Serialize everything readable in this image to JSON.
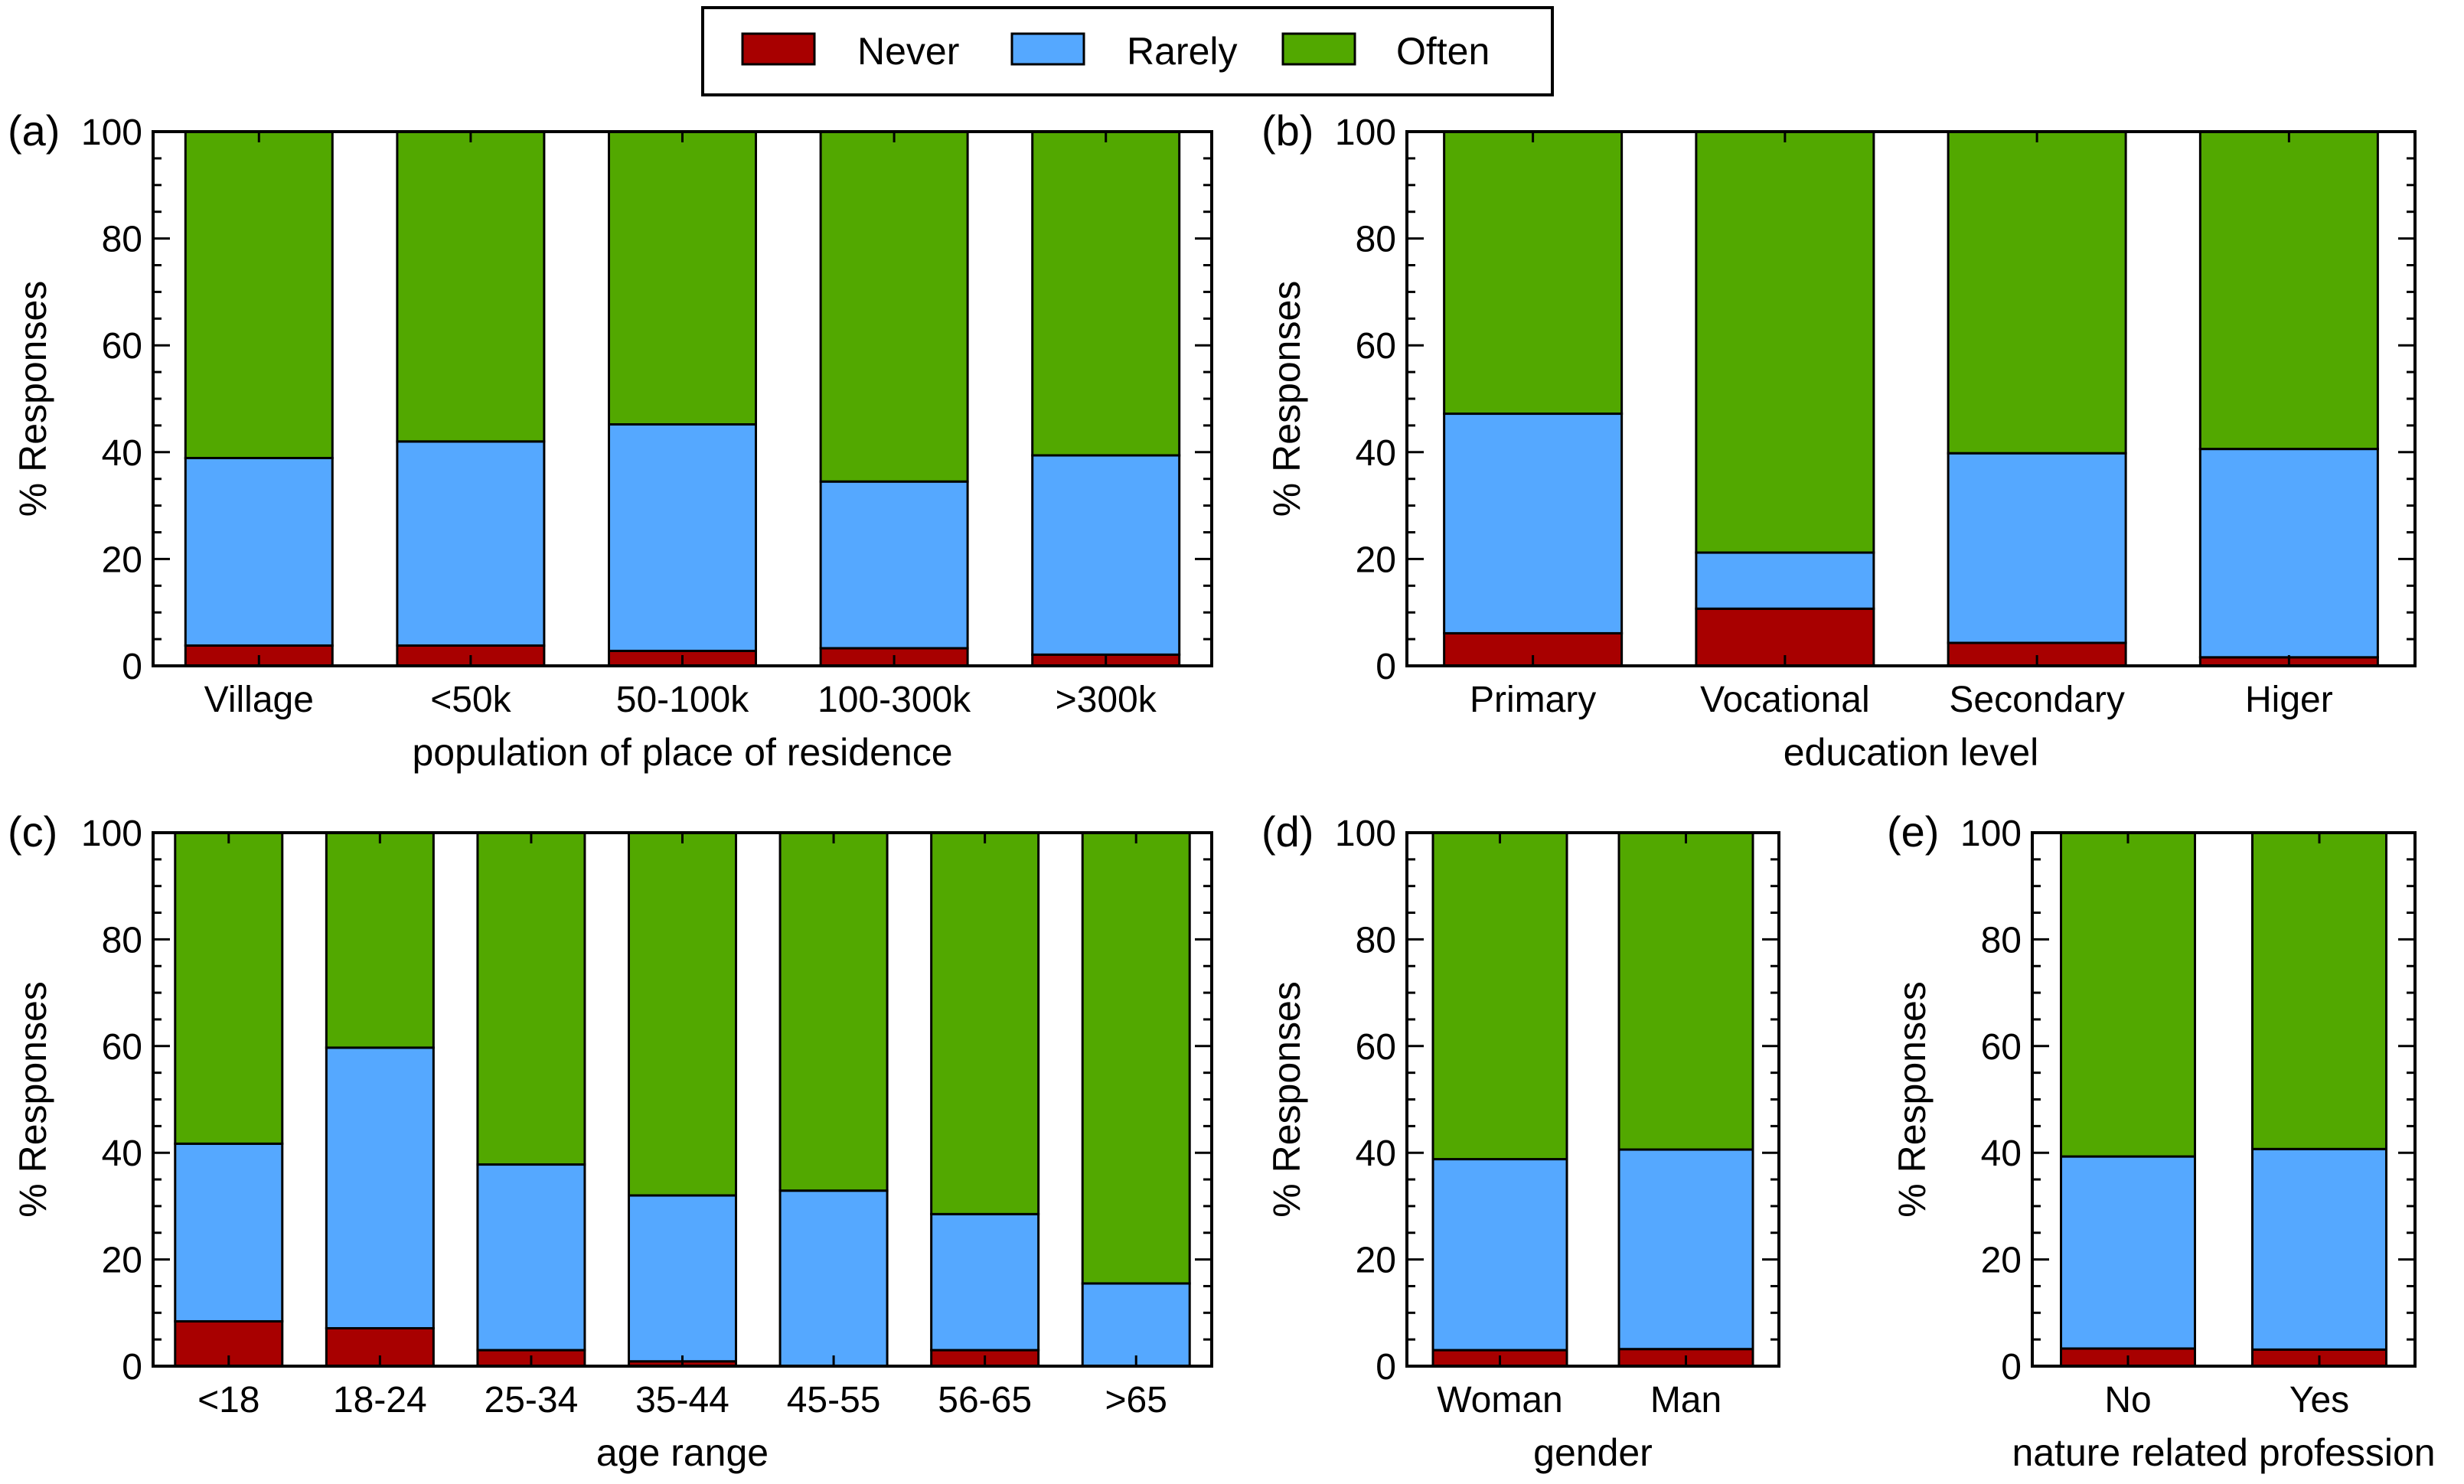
{
  "figure": {
    "legend": [
      {
        "name": "Never",
        "color": "#a80000"
      },
      {
        "name": "Rarely",
        "color": "#55a8ff"
      },
      {
        "name": "Often",
        "color": "#52a800"
      }
    ]
  },
  "colors": {
    "never": "#a80000",
    "rarely": "#55a8ff",
    "often": "#52a800"
  },
  "chart_data": [
    {
      "id": "a",
      "panel_label": "(a)",
      "type": "bar",
      "stacked": true,
      "title": "",
      "xlabel": "population of place of residence",
      "ylabel": "% Responses",
      "ylim": [
        0,
        100
      ],
      "yticks": [
        "0",
        "20",
        "40",
        "60",
        "80",
        "100"
      ],
      "categories": [
        "Village",
        "<50k",
        "50-100k",
        "100-300k",
        ">300k"
      ],
      "series": [
        {
          "name": "Never",
          "values": [
            3.8,
            3.8,
            2.8,
            3.3,
            2.1
          ]
        },
        {
          "name": "Rarely",
          "values": [
            35.1,
            38.2,
            42.4,
            31.2,
            37.3
          ]
        },
        {
          "name": "Often",
          "values": [
            61.1,
            58.0,
            54.8,
            65.5,
            60.6
          ]
        }
      ]
    },
    {
      "id": "b",
      "panel_label": "(b)",
      "type": "bar",
      "stacked": true,
      "title": "",
      "xlabel": "education level",
      "ylabel": "% Responses",
      "ylim": [
        0,
        100
      ],
      "yticks": [
        "0",
        "20",
        "40",
        "60",
        "80",
        "100"
      ],
      "categories": [
        "Primary",
        "Vocational",
        "Secondary",
        "Higer"
      ],
      "series": [
        {
          "name": "Never",
          "values": [
            6.1,
            10.7,
            4.3,
            1.6
          ]
        },
        {
          "name": "Rarely",
          "values": [
            41.1,
            10.5,
            35.5,
            39.0
          ]
        },
        {
          "name": "Often",
          "values": [
            52.8,
            78.8,
            60.2,
            59.4
          ]
        }
      ]
    },
    {
      "id": "c",
      "panel_label": "(c)",
      "type": "bar",
      "stacked": true,
      "title": "",
      "xlabel": "age range",
      "ylabel": "% Responses",
      "ylim": [
        0,
        100
      ],
      "yticks": [
        "0",
        "20",
        "40",
        "60",
        "80",
        "100"
      ],
      "categories": [
        "<18",
        "18-24",
        "25-34",
        "35-44",
        "45-55",
        "56-65",
        ">65"
      ],
      "series": [
        {
          "name": "Never",
          "values": [
            8.4,
            7.1,
            3.0,
            0.9,
            0.0,
            3.0,
            0.0
          ]
        },
        {
          "name": "Rarely",
          "values": [
            33.3,
            52.6,
            34.8,
            31.1,
            32.9,
            25.5,
            15.5
          ]
        },
        {
          "name": "Often",
          "values": [
            58.3,
            40.3,
            62.2,
            68.0,
            67.1,
            71.5,
            84.5
          ]
        }
      ]
    },
    {
      "id": "d",
      "panel_label": "(d)",
      "type": "bar",
      "stacked": true,
      "title": "",
      "xlabel": "gender",
      "ylabel": "% Responses",
      "ylim": [
        0,
        100
      ],
      "yticks": [
        "0",
        "20",
        "40",
        "60",
        "80",
        "100"
      ],
      "categories": [
        "Woman",
        "Man"
      ],
      "series": [
        {
          "name": "Never",
          "values": [
            3.0,
            3.2
          ]
        },
        {
          "name": "Rarely",
          "values": [
            35.8,
            37.4
          ]
        },
        {
          "name": "Often",
          "values": [
            61.2,
            59.4
          ]
        }
      ]
    },
    {
      "id": "e",
      "panel_label": "(e)",
      "type": "bar",
      "stacked": true,
      "title": "",
      "xlabel": "nature related profession",
      "ylabel": "% Responses",
      "ylim": [
        0,
        100
      ],
      "yticks": [
        "0",
        "20",
        "40",
        "60",
        "80",
        "100"
      ],
      "categories": [
        "No",
        "Yes"
      ],
      "series": [
        {
          "name": "Never",
          "values": [
            3.3,
            3.1
          ]
        },
        {
          "name": "Rarely",
          "values": [
            36.0,
            37.6
          ]
        },
        {
          "name": "Often",
          "values": [
            60.7,
            59.3
          ]
        }
      ]
    }
  ]
}
